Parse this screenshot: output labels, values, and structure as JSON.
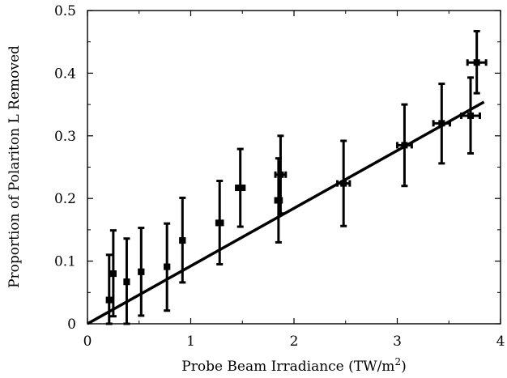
{
  "chart_data": {
    "type": "scatter",
    "title": "",
    "xlabel": "Probe Beam Irradiance (TW/m",
    "xlabel_sup": "2",
    "xlabel_end": ")",
    "ylabel": "Proportion of Polariton L Removed",
    "xlim": [
      0,
      4
    ],
    "ylim": [
      0,
      0.5
    ],
    "x_ticks": [
      "0",
      "1",
      "2",
      "3",
      "4"
    ],
    "y_ticks": [
      "0",
      "0.1",
      "0.2",
      "0.3",
      "0.4",
      "0.5"
    ],
    "grid": false,
    "series": [
      {
        "points": [
          {
            "x": 0.21,
            "y": 0.038,
            "ylo": 0.0,
            "yhi": 0.11,
            "xerr": 0.02
          },
          {
            "x": 0.25,
            "y": 0.08,
            "ylo": 0.012,
            "yhi": 0.149,
            "xerr": 0.02
          },
          {
            "x": 0.38,
            "y": 0.067,
            "ylo": 0.0,
            "yhi": 0.136,
            "xerr": 0.02
          },
          {
            "x": 0.52,
            "y": 0.083,
            "ylo": 0.013,
            "yhi": 0.153,
            "xerr": 0.02
          },
          {
            "x": 0.77,
            "y": 0.091,
            "ylo": 0.021,
            "yhi": 0.16,
            "xerr": 0.02
          },
          {
            "x": 0.92,
            "y": 0.133,
            "ylo": 0.066,
            "yhi": 0.201,
            "xerr": 0.02
          },
          {
            "x": 1.28,
            "y": 0.161,
            "ylo": 0.095,
            "yhi": 0.228,
            "xerr": 0.03
          },
          {
            "x": 1.48,
            "y": 0.217,
            "ylo": 0.155,
            "yhi": 0.279,
            "xerr": 0.04
          },
          {
            "x": 1.85,
            "y": 0.197,
            "ylo": 0.13,
            "yhi": 0.264,
            "xerr": 0.03
          },
          {
            "x": 1.87,
            "y": 0.238,
            "ylo": 0.176,
            "yhi": 0.3,
            "xerr": 0.05
          },
          {
            "x": 2.48,
            "y": 0.224,
            "ylo": 0.156,
            "yhi": 0.292,
            "xerr": 0.06
          },
          {
            "x": 3.07,
            "y": 0.285,
            "ylo": 0.22,
            "yhi": 0.35,
            "xerr": 0.07
          },
          {
            "x": 3.43,
            "y": 0.32,
            "ylo": 0.256,
            "yhi": 0.383,
            "xerr": 0.08
          },
          {
            "x": 3.71,
            "y": 0.332,
            "ylo": 0.272,
            "yhi": 0.393,
            "xerr": 0.09
          },
          {
            "x": 3.77,
            "y": 0.417,
            "ylo": 0.368,
            "yhi": 0.467,
            "xerr": 0.09
          }
        ]
      }
    ],
    "fit_line": {
      "x": [
        0,
        3.84
      ],
      "y": [
        0,
        0.354
      ]
    },
    "colors": {
      "marks": "#000000",
      "line": "#000000",
      "axes": "#000000"
    }
  }
}
